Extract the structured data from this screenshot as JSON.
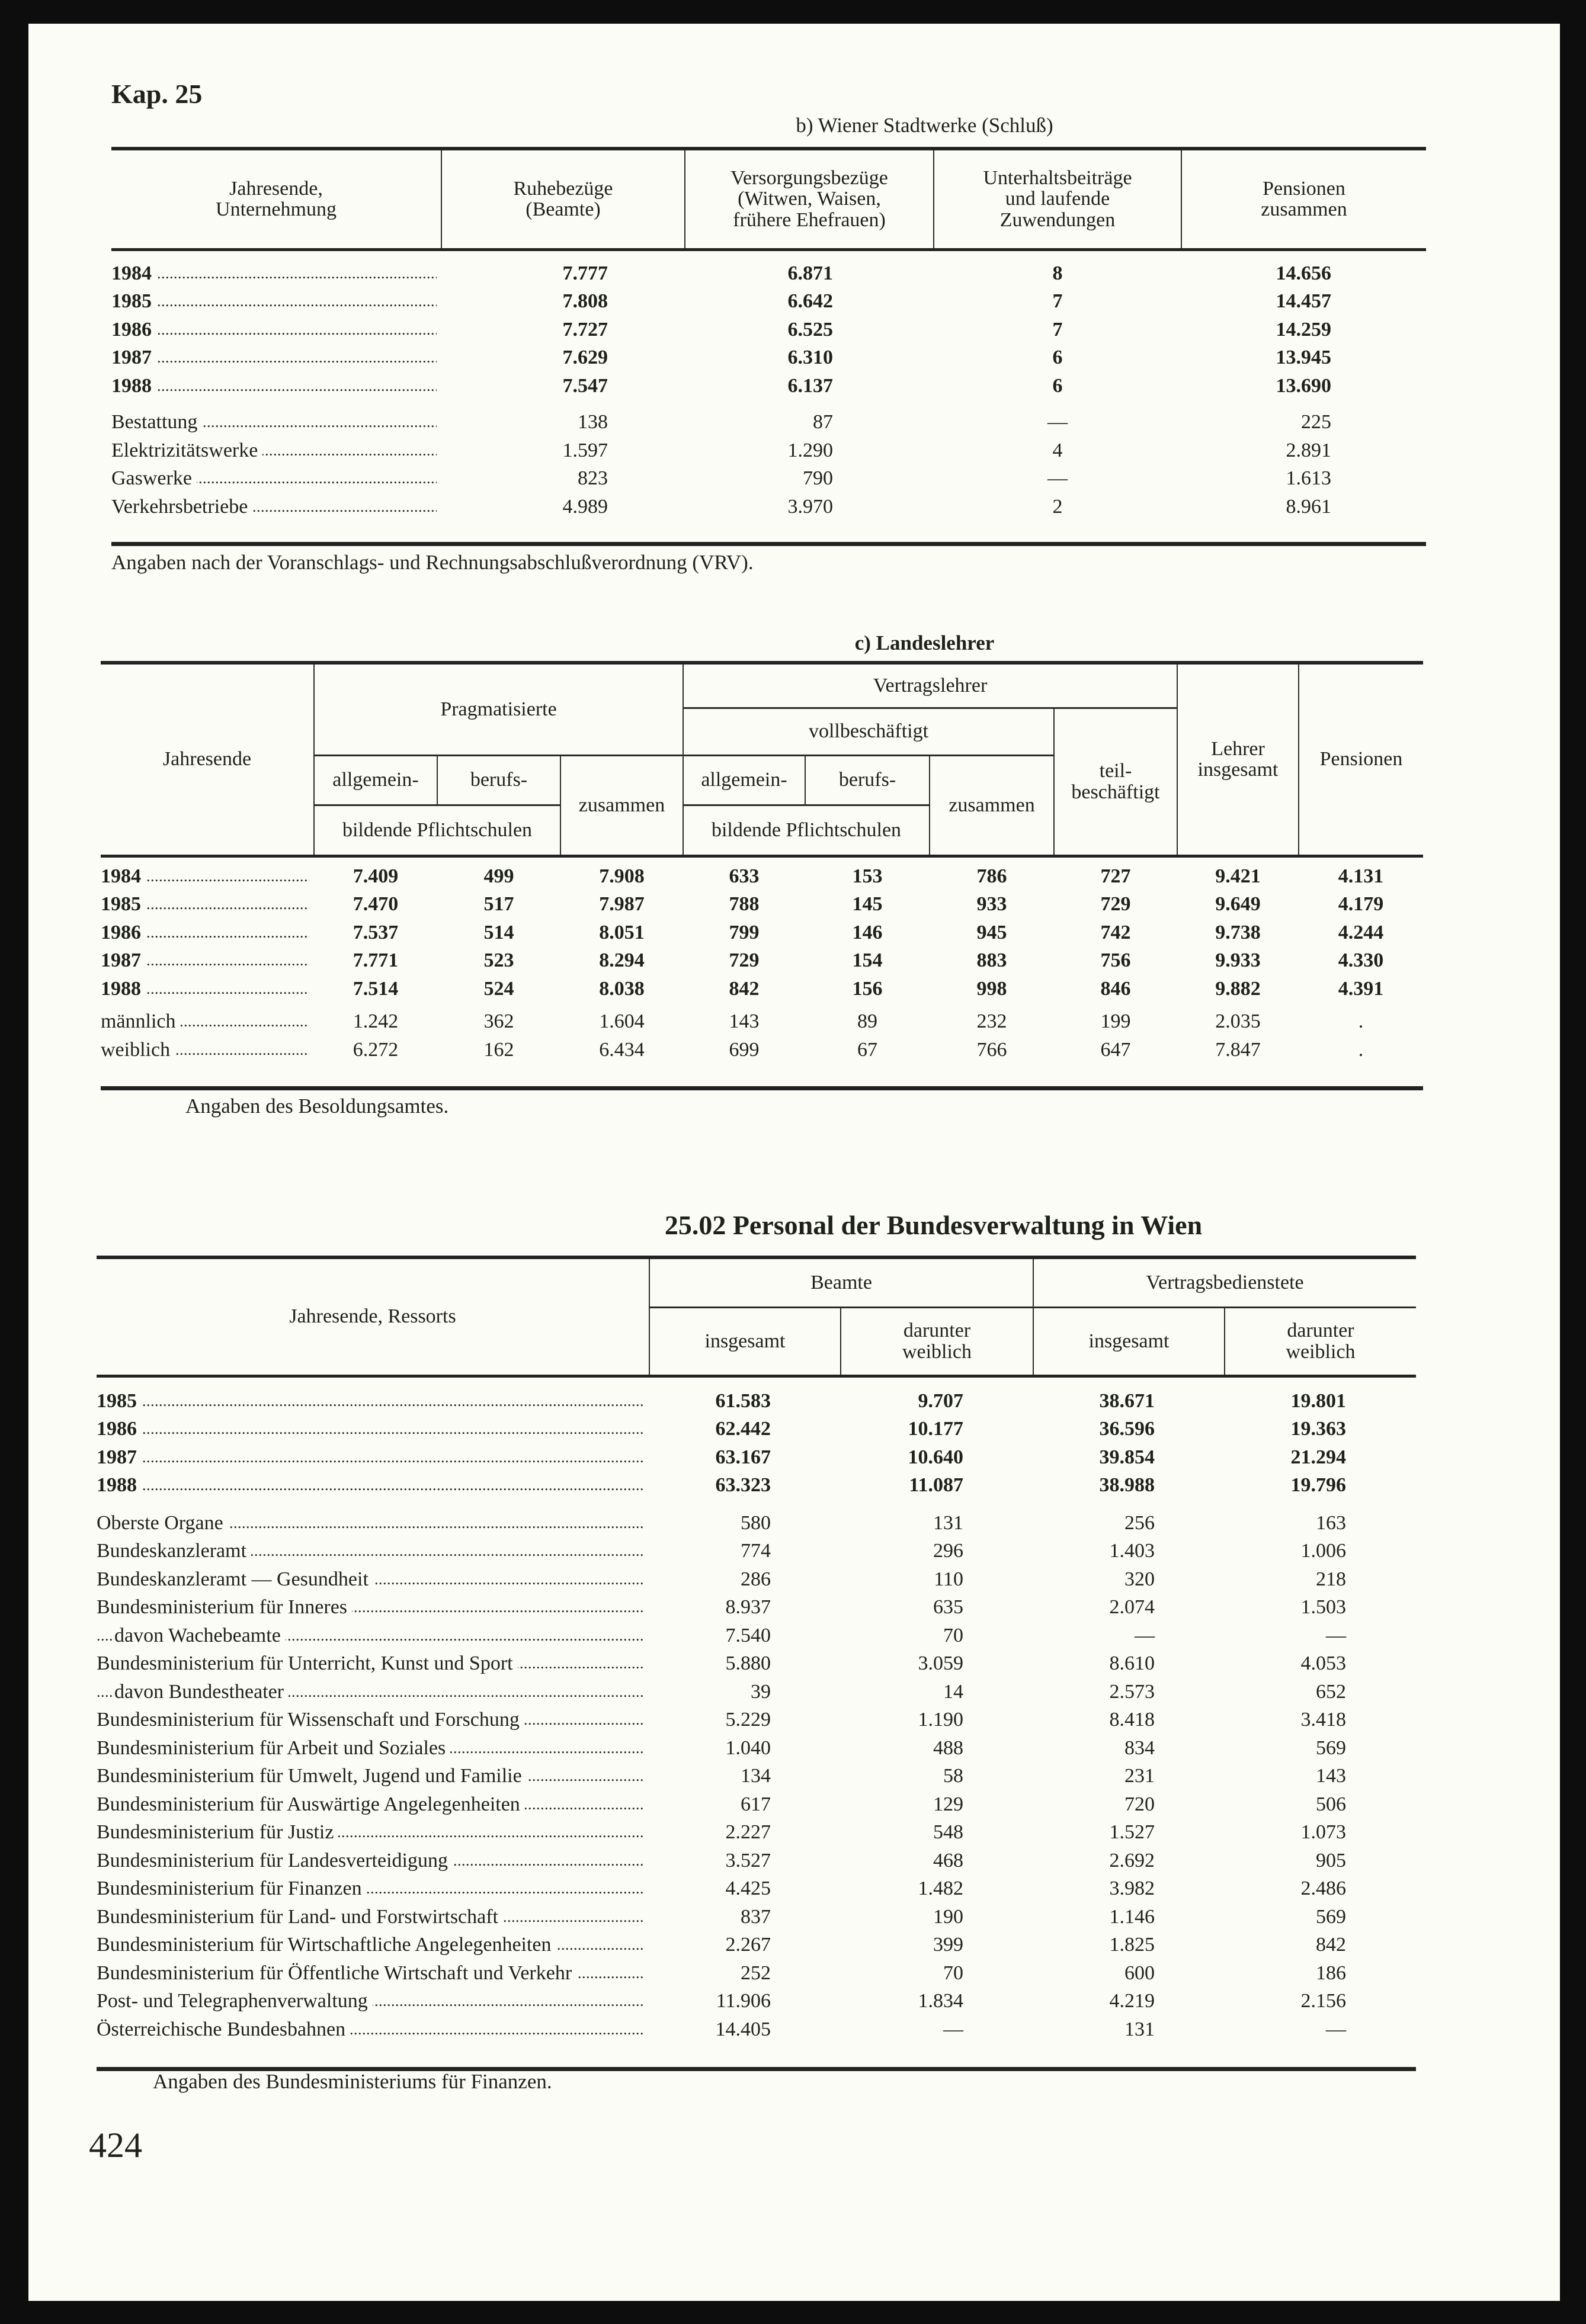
{
  "header": {
    "chapter": "Kap. 25",
    "page_number": "424"
  },
  "table_b": {
    "caption": "b) Wiener Stadtwerke (Schluß)",
    "columns": [
      "Jahresende,\nUnternehmung",
      "Ruhebezüge\n(Beamte)",
      "Versorgungsbezüge\n(Witwen, Waisen,\nfrühere Ehefrauen)",
      "Unterhaltsbeiträge\nund laufende\nZuwendungen",
      "Pensionen\nzusammen"
    ],
    "groups": [
      [
        {
          "label": "1984",
          "values": [
            "7.777",
            "6.871",
            "8",
            "14.656"
          ],
          "bold": true
        },
        {
          "label": "1985",
          "values": [
            "7.808",
            "6.642",
            "7",
            "14.457"
          ],
          "bold": true
        },
        {
          "label": "1986",
          "values": [
            "7.727",
            "6.525",
            "7",
            "14.259"
          ],
          "bold": true
        },
        {
          "label": "1987",
          "values": [
            "7.629",
            "6.310",
            "6",
            "13.945"
          ],
          "bold": true
        },
        {
          "label": "1988",
          "values": [
            "7.547",
            "6.137",
            "6",
            "13.690"
          ],
          "bold": true
        }
      ],
      [
        {
          "label": "Bestattung",
          "values": [
            "138",
            "87",
            "—",
            "225"
          ]
        },
        {
          "label": "Elektrizitätswerke",
          "values": [
            "1.597",
            "1.290",
            "4",
            "2.891"
          ]
        },
        {
          "label": "Gaswerke",
          "values": [
            "823",
            "790",
            "—",
            "1.613"
          ]
        },
        {
          "label": "Verkehrsbetriebe",
          "values": [
            "4.989",
            "3.970",
            "2",
            "8.961"
          ]
        }
      ]
    ],
    "note": "Angaben nach der Voranschlags- und Rechnungsabschlußverordnung (VRV)."
  },
  "table_c": {
    "caption": "c) Landeslehrer",
    "headers": {
      "jahresende": "Jahresende",
      "pragmatisierte": "Pragmatisierte",
      "vertragslehrer": "Vertragslehrer",
      "vollbeschaeftigt": "vollbeschäftigt",
      "allgemein": "allgemein-",
      "berufs": "berufs-",
      "bildende": "bildende Pflichtschulen",
      "zusammen": "zusammen",
      "teilbeschaeftigt": "teil-\nbeschäftigt",
      "lehrer_insgesamt": "Lehrer\ninsgesamt",
      "pensionen": "Pensionen"
    },
    "groups": [
      [
        {
          "label": "1984",
          "values": [
            "7.409",
            "499",
            "7.908",
            "633",
            "153",
            "786",
            "727",
            "9.421",
            "4.131"
          ],
          "bold": true
        },
        {
          "label": "1985",
          "values": [
            "7.470",
            "517",
            "7.987",
            "788",
            "145",
            "933",
            "729",
            "9.649",
            "4.179"
          ],
          "bold": true
        },
        {
          "label": "1986",
          "values": [
            "7.537",
            "514",
            "8.051",
            "799",
            "146",
            "945",
            "742",
            "9.738",
            "4.244"
          ],
          "bold": true
        },
        {
          "label": "1987",
          "values": [
            "7.771",
            "523",
            "8.294",
            "729",
            "154",
            "883",
            "756",
            "9.933",
            "4.330"
          ],
          "bold": true
        },
        {
          "label": "1988",
          "values": [
            "7.514",
            "524",
            "8.038",
            "842",
            "156",
            "998",
            "846",
            "9.882",
            "4.391"
          ],
          "bold": true
        }
      ],
      [
        {
          "label": "männlich",
          "values": [
            "1.242",
            "362",
            "1.604",
            "143",
            "89",
            "232",
            "199",
            "2.035",
            "."
          ]
        },
        {
          "label": "weiblich",
          "values": [
            "6.272",
            "162",
            "6.434",
            "699",
            "67",
            "766",
            "647",
            "7.847",
            "."
          ]
        }
      ]
    ],
    "note": "Angaben des Besoldungsamtes."
  },
  "table_2502": {
    "title": "25.02 Personal der Bundesverwaltung in Wien",
    "headers": {
      "jahresende": "Jahresende, Ressorts",
      "beamte": "Beamte",
      "vertragsbedienstete": "Vertragsbedienstete",
      "insgesamt": "insgesamt",
      "darunter_weiblich": "darunter\nweiblich"
    },
    "groups": [
      [
        {
          "label": "1985",
          "values": [
            "61.583",
            "9.707",
            "38.671",
            "19.801"
          ],
          "bold": true
        },
        {
          "label": "1986",
          "values": [
            "62.442",
            "10.177",
            "36.596",
            "19.363"
          ],
          "bold": true
        },
        {
          "label": "1987",
          "values": [
            "63.167",
            "10.640",
            "39.854",
            "21.294"
          ],
          "bold": true
        },
        {
          "label": "1988",
          "values": [
            "63.323",
            "11.087",
            "38.988",
            "19.796"
          ],
          "bold": true
        }
      ],
      [
        {
          "label": "Oberste Organe",
          "values": [
            "580",
            "131",
            "256",
            "163"
          ]
        },
        {
          "label": "Bundeskanzleramt",
          "values": [
            "774",
            "296",
            "1.403",
            "1.006"
          ]
        },
        {
          "label": "Bundeskanzleramt — Gesundheit",
          "values": [
            "286",
            "110",
            "320",
            "218"
          ]
        },
        {
          "label": "Bundesministerium für Inneres",
          "values": [
            "8.937",
            "635",
            "2.074",
            "1.503"
          ]
        },
        {
          "label": "davon Wachebeamte",
          "values": [
            "7.540",
            "70",
            "—",
            "—"
          ],
          "indent": true
        },
        {
          "label": "Bundesministerium für Unterricht, Kunst und Sport",
          "values": [
            "5.880",
            "3.059",
            "8.610",
            "4.053"
          ]
        },
        {
          "label": "davon Bundestheater",
          "values": [
            "39",
            "14",
            "2.573",
            "652"
          ],
          "indent": true
        },
        {
          "label": "Bundesministerium für Wissenschaft und Forschung",
          "values": [
            "5.229",
            "1.190",
            "8.418",
            "3.418"
          ]
        },
        {
          "label": "Bundesministerium für Arbeit und Soziales",
          "values": [
            "1.040",
            "488",
            "834",
            "569"
          ]
        },
        {
          "label": "Bundesministerium für Umwelt, Jugend und Familie",
          "values": [
            "134",
            "58",
            "231",
            "143"
          ]
        },
        {
          "label": "Bundesministerium für Auswärtige Angelegenheiten",
          "values": [
            "617",
            "129",
            "720",
            "506"
          ]
        },
        {
          "label": "Bundesministerium für Justiz",
          "values": [
            "2.227",
            "548",
            "1.527",
            "1.073"
          ]
        },
        {
          "label": "Bundesministerium für Landesverteidigung",
          "values": [
            "3.527",
            "468",
            "2.692",
            "905"
          ]
        },
        {
          "label": "Bundesministerium für Finanzen",
          "values": [
            "4.425",
            "1.482",
            "3.982",
            "2.486"
          ]
        },
        {
          "label": "Bundesministerium für Land- und Forstwirtschaft",
          "values": [
            "837",
            "190",
            "1.146",
            "569"
          ]
        },
        {
          "label": "Bundesministerium für Wirtschaftliche Angelegenheiten",
          "values": [
            "2.267",
            "399",
            "1.825",
            "842"
          ]
        },
        {
          "label": "Bundesministerium für Öffentliche Wirtschaft und Verkehr",
          "values": [
            "252",
            "70",
            "600",
            "186"
          ]
        },
        {
          "label": "Post- und Telegraphenverwaltung",
          "values": [
            "11.906",
            "1.834",
            "4.219",
            "2.156"
          ]
        },
        {
          "label": "Österreichische Bundesbahnen",
          "values": [
            "14.405",
            "—",
            "131",
            "—"
          ]
        }
      ]
    ],
    "note": "Angaben des Bundesministeriums für Finanzen."
  }
}
